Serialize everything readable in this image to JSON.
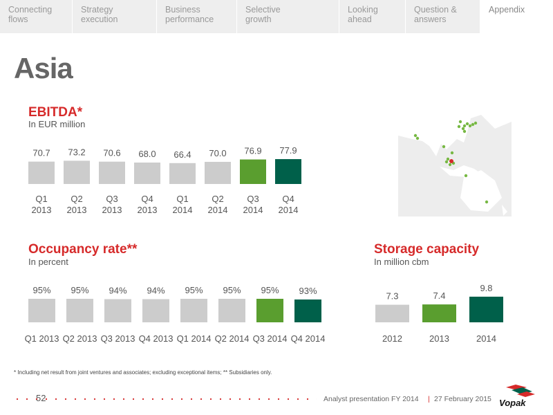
{
  "nav": {
    "tabs": [
      {
        "label": [
          "Connecting",
          "flows"
        ]
      },
      {
        "label": [
          "Strategy",
          "execution"
        ]
      },
      {
        "label": [
          "Business",
          "performance"
        ]
      },
      {
        "label": [
          "Selective",
          "growth"
        ]
      },
      {
        "label": [
          "Looking",
          "ahead"
        ]
      },
      {
        "label": [
          "Question &",
          "answers"
        ]
      },
      {
        "label": [
          "Appendix"
        ]
      }
    ],
    "active_index": 6
  },
  "page_title": "Asia",
  "colors": {
    "grey": "#cccccc",
    "green": "#5a9e2f",
    "dark_green": "#00604a",
    "red": "#d62a2a"
  },
  "ebitda": {
    "title": "EBITDA*",
    "subtitle": "In EUR million"
  },
  "occupancy": {
    "title": "Occupancy rate**",
    "subtitle": "In percent"
  },
  "storage": {
    "title": "Storage capacity",
    "subtitle": "In million cbm"
  },
  "chart_data": [
    {
      "type": "bar",
      "title": "EBITDA*",
      "subtitle": "In EUR million",
      "categories": [
        [
          "Q1",
          "2013"
        ],
        [
          "Q2",
          "2013"
        ],
        [
          "Q3",
          "2013"
        ],
        [
          "Q4",
          "2013"
        ],
        [
          "Q1",
          "2014"
        ],
        [
          "Q2",
          "2014"
        ],
        [
          "Q3",
          "2014"
        ],
        [
          "Q4",
          "2014"
        ]
      ],
      "values": [
        70.7,
        73.2,
        70.6,
        68.0,
        66.4,
        70.0,
        76.9,
        77.9
      ],
      "labels": [
        "70.7",
        "73.2",
        "70.6",
        "68.0",
        "66.4",
        "70.0",
        "76.9",
        "77.9"
      ],
      "bar_colors": [
        "grey",
        "grey",
        "grey",
        "grey",
        "grey",
        "grey",
        "green",
        "dark_green"
      ]
    },
    {
      "type": "bar",
      "title": "Occupancy rate**",
      "subtitle": "In percent",
      "categories": [
        "Q1 2013",
        "Q2 2013",
        "Q3 2013",
        "Q4 2013",
        "Q1 2014",
        "Q2 2014",
        "Q3 2014",
        "Q4 2014"
      ],
      "values": [
        95,
        95,
        94,
        94,
        95,
        95,
        95,
        93
      ],
      "labels": [
        "95%",
        "95%",
        "94%",
        "94%",
        "95%",
        "95%",
        "95%",
        "93%"
      ],
      "bar_colors": [
        "grey",
        "grey",
        "grey",
        "grey",
        "grey",
        "grey",
        "green",
        "dark_green"
      ]
    },
    {
      "type": "bar",
      "title": "Storage capacity",
      "subtitle": "In million cbm",
      "categories": [
        "2012",
        "2013",
        "2014"
      ],
      "values": [
        7.3,
        7.4,
        9.8
      ],
      "labels": [
        "7.3",
        "7.4",
        "9.8"
      ],
      "bar_colors": [
        "grey",
        "green",
        "dark_green"
      ]
    }
  ],
  "footnote": "* Including net result from joint ventures and associates; excluding exceptional items; ** Subsidiaries only.",
  "footer": {
    "page_number": "52",
    "presentation": "Analyst presentation FY 2014",
    "separator": "|",
    "date": "27 February 2015",
    "logo_text": "Vopak"
  }
}
